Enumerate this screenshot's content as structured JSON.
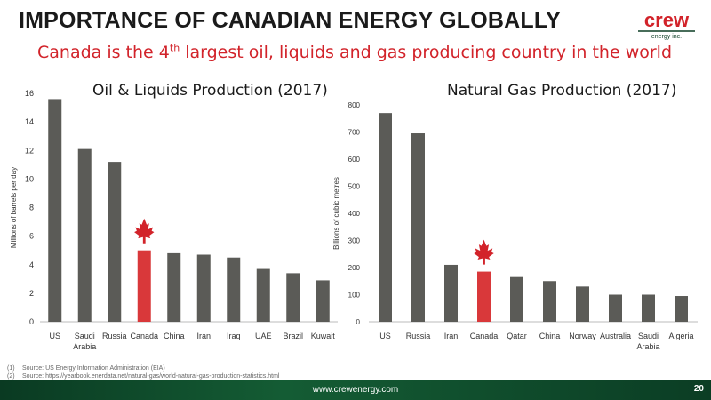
{
  "slide": {
    "title": "IMPORTANCE OF CANADIAN ENERGY GLOBALLY",
    "subtitle_pre": "Canada is the 4",
    "subtitle_sup": "th",
    "subtitle_post": " largest oil, liquids and gas producing country in the world",
    "logo_text": "crew",
    "logo_subtext": "energy inc.",
    "footer_url": "www.crewenergy.com",
    "page_number": "20",
    "footnotes": [
      {
        "num": "(1)",
        "text": "Source:  US Energy Information Administration (EIA)"
      },
      {
        "num": "(2)",
        "text": "Source:  https://yearbook.enerdata.net/natural-gas/world-natural-gas-production-statistics.html"
      }
    ]
  },
  "colors": {
    "bar": "#5b5b57",
    "highlight": "#d9383a",
    "accent_red": "#d2232a",
    "footer_green": "#0b3d24"
  },
  "chart_data": [
    {
      "type": "bar",
      "title": "Oil & Liquids  Production (2017)",
      "ylabel": "Millions of  barrels per day",
      "xlabel": "",
      "categories": [
        "US",
        "Saudi Arabia",
        "Russia",
        "Canada",
        "China",
        "Iran",
        "Iraq",
        "UAE",
        "Brazil",
        "Kuwait"
      ],
      "values": [
        15.6,
        12.1,
        11.2,
        5.0,
        4.8,
        4.7,
        4.5,
        3.7,
        3.4,
        2.9
      ],
      "highlight": "Canada",
      "ylim": [
        0,
        16
      ],
      "yticks": [
        0,
        2,
        4,
        6,
        8,
        10,
        12,
        14,
        16
      ],
      "grid": false,
      "marker_icon": "maple-leaf-icon"
    },
    {
      "type": "bar",
      "title": "Natural Gas Production (2017)",
      "ylabel": "Billions of cubic metres",
      "xlabel": "",
      "categories": [
        "US",
        "Russia",
        "Iran",
        "Canada",
        "Qatar",
        "China",
        "Norway",
        "Australia",
        "Saudi Arabia",
        "Algeria"
      ],
      "values": [
        770,
        695,
        210,
        185,
        165,
        150,
        130,
        100,
        100,
        95
      ],
      "highlight": "Canada",
      "ylim": [
        0,
        800
      ],
      "yticks": [
        0,
        100,
        200,
        300,
        400,
        500,
        600,
        700,
        800
      ],
      "grid": false,
      "marker_icon": "maple-leaf-icon"
    }
  ]
}
